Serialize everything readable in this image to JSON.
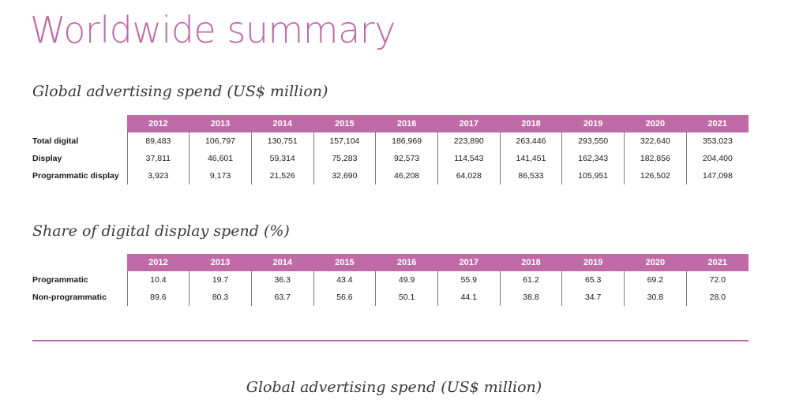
{
  "page": {
    "title": "Worldwide summary"
  },
  "section1": {
    "heading": "Global advertising spend (US$ million)",
    "years": [
      "2012",
      "2013",
      "2014",
      "2015",
      "2016",
      "2017",
      "2018",
      "2019",
      "2020",
      "2021"
    ],
    "rows": [
      {
        "label": "Total digital",
        "values": [
          "89,483",
          "106,797",
          "130,751",
          "157,104",
          "186,969",
          "223,890",
          "263,446",
          "293,550",
          "322,640",
          "353,023"
        ]
      },
      {
        "label": "Display",
        "values": [
          "37,811",
          "46,601",
          "59,314",
          "75,283",
          "92,573",
          "114,543",
          "141,451",
          "162,343",
          "182,856",
          "204,400"
        ]
      },
      {
        "label": "Programmatic display",
        "values": [
          "3,923",
          "9,173",
          "21,526",
          "32,690",
          "46,208",
          "64,028",
          "86,533",
          "105,951",
          "126,502",
          "147,098"
        ]
      }
    ]
  },
  "section2": {
    "heading": "Share of digital display spend (%)",
    "years": [
      "2012",
      "2013",
      "2014",
      "2015",
      "2016",
      "2017",
      "2018",
      "2019",
      "2020",
      "2021"
    ],
    "rows": [
      {
        "label": "Programmatic",
        "values": [
          "10.4",
          "19.7",
          "36.3",
          "43.4",
          "49.9",
          "55.9",
          "61.2",
          "65.3",
          "69.2",
          "72.0"
        ]
      },
      {
        "label": "Non-programmatic",
        "values": [
          "89.6",
          "80.3",
          "63.7",
          "56.6",
          "50.1",
          "44.1",
          "38.8",
          "34.7",
          "30.8",
          "28.0"
        ]
      }
    ]
  },
  "footer": {
    "heading": "Global advertising spend (US$ million)"
  },
  "colors": {
    "accent": "#c06aa8",
    "header_text": "#ffffff",
    "body_text": "#1a1a1a"
  }
}
